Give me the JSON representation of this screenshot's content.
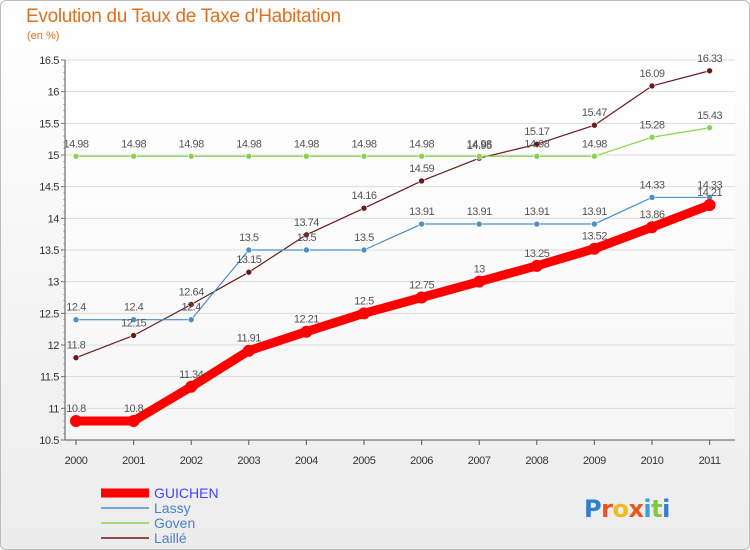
{
  "title": "Evolution du Taux de Taxe d'Habitation",
  "subtitle": "(en %)",
  "brand": "Proxiti",
  "chart_data": {
    "type": "line",
    "title": "Evolution du Taux de Taxe d'Habitation",
    "subtitle": "(en %)",
    "xlabel": "",
    "ylabel": "",
    "x": [
      "2000",
      "2001",
      "2002",
      "2003",
      "2004",
      "2005",
      "2006",
      "2007",
      "2008",
      "2009",
      "2010",
      "2011"
    ],
    "ylim": [
      10.5,
      16.5
    ],
    "yticks": [
      "10.5",
      "11",
      "11.5",
      "12",
      "12.5",
      "13",
      "13.5",
      "14",
      "14.5",
      "15",
      "15.5",
      "16",
      "16.5"
    ],
    "grid": "horizontal",
    "legend": "bottom-left",
    "series": [
      {
        "name": "GUICHEN",
        "color": "#ff0000",
        "values": [
          10.8,
          10.8,
          11.34,
          11.91,
          12.21,
          12.5,
          12.75,
          13,
          13.25,
          13.52,
          13.86,
          14.21
        ],
        "labels": [
          "10.8",
          "10.8",
          "11.34",
          "11.91",
          "12.21",
          "12.5",
          "12.75",
          "13",
          "13.25",
          "13.52",
          "13.86",
          "14.21"
        ]
      },
      {
        "name": "Lassy",
        "color": "#4a90c8",
        "values": [
          12.4,
          12.4,
          12.4,
          13.5,
          13.5,
          13.5,
          13.91,
          13.91,
          13.91,
          13.91,
          14.33,
          14.33
        ],
        "labels": [
          "12.4",
          "12.4",
          "12.4",
          "13.5",
          "13.5",
          "13.5",
          "13.91",
          "13.91",
          "13.91",
          "13.91",
          "14.33",
          "14.33"
        ]
      },
      {
        "name": "Goven",
        "color": "#88d44c",
        "values": [
          14.98,
          14.98,
          14.98,
          14.98,
          14.98,
          14.98,
          14.98,
          14.98,
          14.98,
          14.98,
          15.28,
          15.43
        ],
        "labels": [
          "14.98",
          "14.98",
          "14.98",
          "14.98",
          "14.98",
          "14.98",
          "14.98",
          "14.98",
          "14.98",
          "14.98",
          "15.28",
          "15.43"
        ]
      },
      {
        "name": "Laillé",
        "color": "#6b1a1a",
        "values": [
          11.8,
          12.15,
          12.64,
          13.15,
          13.74,
          14.16,
          14.59,
          14.95,
          15.17,
          15.47,
          16.09,
          16.33
        ],
        "labels": [
          "11.8",
          "12.15",
          "12.64",
          "13.15",
          "13.74",
          "14.16",
          "14.59",
          "14.95",
          "15.17",
          "15.47",
          "16.09",
          "16.33"
        ]
      }
    ]
  }
}
